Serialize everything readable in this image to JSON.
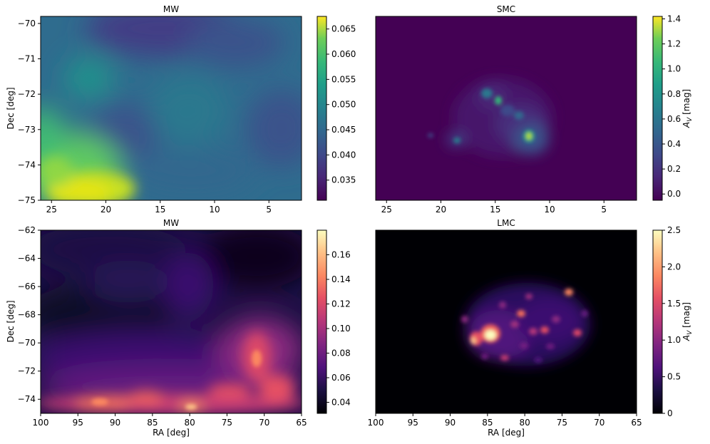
{
  "chart_data": [
    {
      "type": "heatmap",
      "title": "MW",
      "xlabel": "",
      "ylabel": "Dec [deg]",
      "xlim": [
        26,
        2
      ],
      "ylim": [
        -75,
        -69.8
      ],
      "xticks": [
        "25",
        "20",
        "15",
        "10",
        "5"
      ],
      "yticks": [
        "−70",
        "−71",
        "−72",
        "−73",
        "−74",
        "−75"
      ],
      "colormap": "viridis",
      "colorbar": {
        "label": "",
        "range": [
          0.031,
          0.0675
        ],
        "ticks": [
          "0.035",
          "0.040",
          "0.045",
          "0.050",
          "0.055",
          "0.060",
          "0.065"
        ]
      },
      "features": [
        {
          "ra": 21.5,
          "dec": -74.8,
          "value": 0.066
        },
        {
          "ra": 25,
          "dec": -74.2,
          "value": 0.06
        },
        {
          "ra": 21,
          "dec": -71.6,
          "value": 0.052
        },
        {
          "ra": 12.5,
          "dec": -72.2,
          "value": 0.047
        },
        {
          "ra": 16,
          "dec": -70.1,
          "value": 0.032
        },
        {
          "ra": 20,
          "dec": -73.0,
          "value": 0.04
        },
        {
          "ra": 6,
          "dec": -71.2,
          "value": 0.038
        }
      ]
    },
    {
      "type": "heatmap",
      "title": "SMC",
      "xlabel": "",
      "ylabel": "",
      "xlim": [
        26,
        2
      ],
      "ylim": [
        -75,
        -69.8
      ],
      "xticks": [
        "25",
        "20",
        "15",
        "10",
        "5"
      ],
      "yticks": [],
      "colormap": "viridis",
      "colorbar": {
        "label": "A_V [mag]",
        "range": [
          -0.05,
          1.42
        ],
        "ticks": [
          "0.0",
          "0.2",
          "0.4",
          "0.6",
          "0.8",
          "1.0",
          "1.2",
          "1.4"
        ]
      },
      "features": [
        {
          "ra": 11.8,
          "dec": -73.2,
          "value": 1.35
        },
        {
          "ra": 14.6,
          "dec": -72.2,
          "value": 1.05
        },
        {
          "ra": 15.8,
          "dec": -71.9,
          "value": 0.7
        },
        {
          "ra": 18.2,
          "dec": -73.3,
          "value": 0.6
        },
        {
          "ra": 20.8,
          "dec": -73.1,
          "value": 0.35
        }
      ]
    },
    {
      "type": "heatmap",
      "title": "MW",
      "xlabel": "RA [deg]",
      "ylabel": "Dec [deg]",
      "xlim": [
        100,
        65
      ],
      "ylim": [
        -75,
        -62
      ],
      "xticks": [
        "100",
        "95",
        "90",
        "85",
        "80",
        "75",
        "70",
        "65"
      ],
      "yticks": [
        "−62",
        "−64",
        "−66",
        "−68",
        "−70",
        "−72",
        "−74"
      ],
      "colormap": "magma",
      "colorbar": {
        "label": "",
        "range": [
          0.031,
          0.18
        ],
        "ticks": [
          "0.04",
          "0.06",
          "0.08",
          "0.10",
          "0.12",
          "0.14",
          "0.16"
        ]
      },
      "features": [
        {
          "ra": 92,
          "dec": -74.3,
          "value": 0.15
        },
        {
          "ra": 80,
          "dec": -74.4,
          "value": 0.16
        },
        {
          "ra": 86,
          "dec": -74.0,
          "value": 0.14
        },
        {
          "ra": 71,
          "dec": -71.5,
          "value": 0.13
        },
        {
          "ra": 67,
          "dec": -73.6,
          "value": 0.13
        },
        {
          "ra": 76,
          "dec": -72.9,
          "value": 0.1
        },
        {
          "ra": 82,
          "dec": -65.5,
          "value": 0.06
        }
      ]
    },
    {
      "type": "heatmap",
      "title": "LMC",
      "xlabel": "RA [deg]",
      "ylabel": "",
      "xlim": [
        100,
        65
      ],
      "ylim": [
        -75,
        -62
      ],
      "xticks": [
        "100",
        "95",
        "90",
        "85",
        "80",
        "75",
        "70",
        "65"
      ],
      "yticks": [],
      "colormap": "magma",
      "colorbar": {
        "label": "A_V [mag]",
        "range": [
          0,
          2.5
        ],
        "ticks": [
          "0",
          "0.5",
          "1.0",
          "1.5",
          "2.0",
          "2.5"
        ]
      },
      "features": [
        {
          "ra": 84.6,
          "dec": -69.3,
          "value": 2.5
        },
        {
          "ra": 86.5,
          "dec": -69.6,
          "value": 1.8
        },
        {
          "ra": 81,
          "dec": -68.7,
          "value": 1.5
        },
        {
          "ra": 74.2,
          "dec": -66.7,
          "value": 1.7
        },
        {
          "ra": 76,
          "dec": -69.4,
          "value": 1.2
        },
        {
          "ra": 72.5,
          "dec": -69.8,
          "value": 1.1
        },
        {
          "ra": 78.5,
          "dec": -69.5,
          "value": 1.1
        },
        {
          "ra": 83,
          "dec": -71.2,
          "value": 1.0
        },
        {
          "ra": 80,
          "dec": -67.2,
          "value": 0.9
        },
        {
          "ra": 87.5,
          "dec": -68.3,
          "value": 1.0
        }
      ]
    }
  ]
}
